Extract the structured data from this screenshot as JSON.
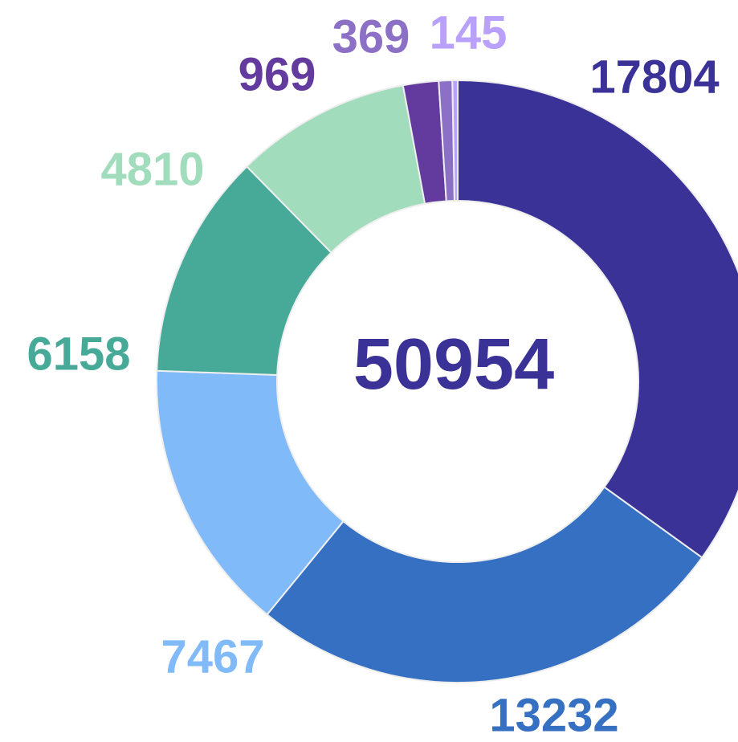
{
  "chart_data": {
    "type": "donut",
    "categories": [
      null,
      null,
      null,
      null,
      null,
      null,
      null,
      null
    ],
    "values": [
      17804,
      13232,
      7467,
      6158,
      4810,
      969,
      369,
      145
    ],
    "colors": [
      "#3a3296",
      "#3670c2",
      "#80baf9",
      "#47aa98",
      "#a1dcbd",
      "#633a9e",
      "#8b70c6",
      "#b9a0fa"
    ],
    "center_label": 50954
  }
}
